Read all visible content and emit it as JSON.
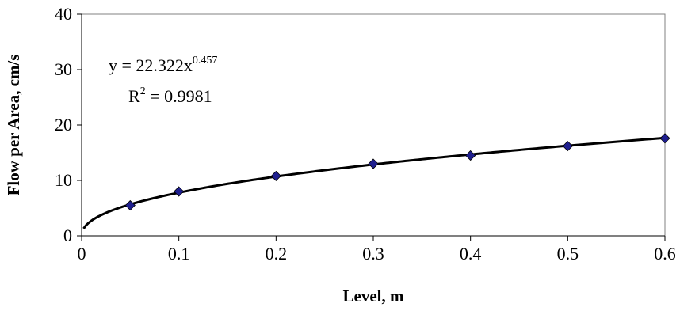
{
  "chart_data": {
    "type": "scatter",
    "xlabel": "Level, m",
    "ylabel": "Flow per Area, cm/s",
    "xlim": [
      0,
      0.6
    ],
    "ylim": [
      0,
      40
    ],
    "x_ticks": [
      "0",
      "0.1",
      "0.2",
      "0.3",
      "0.4",
      "0.5",
      "0.6"
    ],
    "y_ticks": [
      "0",
      "10",
      "20",
      "30",
      "40"
    ],
    "grid": false,
    "legend": "none",
    "series": [
      {
        "marker": "diamond",
        "color": "#1f1f8f",
        "x": [
          0.05,
          0.1,
          0.2,
          0.3,
          0.4,
          0.5,
          0.6
        ],
        "y": [
          5.5,
          8.0,
          10.8,
          13.0,
          14.5,
          16.2,
          17.6
        ]
      }
    ],
    "trendline": {
      "type": "power",
      "coefficient": 22.322,
      "exponent": 0.457,
      "color": "#000000"
    },
    "annotations": {
      "equation_prefix": "y = 22.322x",
      "equation_exponent": "0.457",
      "r2_prefix": "R",
      "r2_exponent": "2",
      "r2_suffix": " = 0.9981"
    }
  }
}
